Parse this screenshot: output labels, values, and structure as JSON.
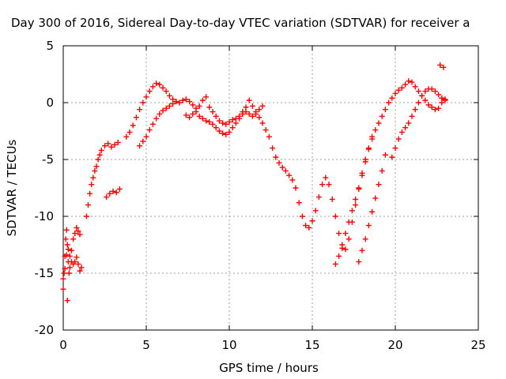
{
  "chart_data": {
    "type": "scatter",
    "title": "Day 300 of 2016, Sidereal Day-to-day VTEC variation (SDTVAR) for receiver a",
    "xlabel": "GPS time / hours",
    "ylabel": "SDTVAR / TECUs",
    "xlim": [
      0,
      25
    ],
    "ylim": [
      -20,
      5
    ],
    "xticks": [
      "0",
      "5",
      "10",
      "15",
      "20",
      "25"
    ],
    "yticks": [
      "-20",
      "-15",
      "-10",
      "-5",
      "0",
      "5"
    ],
    "grid": true,
    "marker": "plus",
    "color": "#ff0000",
    "series": [
      {
        "points": [
          [
            0.0,
            -16.4
          ],
          [
            0.05,
            -15.0
          ],
          [
            0.1,
            -13.5
          ],
          [
            0.15,
            -12.0
          ],
          [
            0.2,
            -11.2
          ],
          [
            0.25,
            -12.5
          ],
          [
            0.3,
            -14.0
          ],
          [
            0.35,
            -15.0
          ],
          [
            0.4,
            -14.5
          ],
          [
            0.5,
            -13.0
          ],
          [
            0.6,
            -12.0
          ],
          [
            0.7,
            -11.5
          ],
          [
            0.8,
            -11.0
          ],
          [
            0.9,
            -11.3
          ],
          [
            1.0,
            -11.6
          ],
          [
            1.4,
            -10.0
          ],
          [
            1.5,
            -9.0
          ],
          [
            1.6,
            -8.0
          ],
          [
            1.7,
            -7.2
          ],
          [
            1.8,
            -6.6
          ],
          [
            1.9,
            -6.0
          ],
          [
            2.0,
            -5.6
          ],
          [
            2.1,
            -5.0
          ],
          [
            2.2,
            -4.6
          ],
          [
            2.3,
            -4.2
          ],
          [
            2.5,
            -3.8
          ],
          [
            2.7,
            -3.6
          ],
          [
            2.9,
            -3.9
          ],
          [
            3.1,
            -3.7
          ],
          [
            3.3,
            -3.5
          ],
          [
            3.8,
            -3.0
          ],
          [
            4.0,
            -2.6
          ],
          [
            4.2,
            -2.0
          ],
          [
            4.4,
            -1.3
          ],
          [
            4.6,
            -0.6
          ],
          [
            4.8,
            0.0
          ],
          [
            5.0,
            0.5
          ],
          [
            5.2,
            1.0
          ],
          [
            5.4,
            1.4
          ],
          [
            5.6,
            1.7
          ],
          [
            5.8,
            1.6
          ],
          [
            6.0,
            1.3
          ],
          [
            6.2,
            1.0
          ],
          [
            6.4,
            0.6
          ],
          [
            6.6,
            0.3
          ],
          [
            6.8,
            0.1
          ],
          [
            7.0,
            0.0
          ],
          [
            7.2,
            0.2
          ],
          [
            7.4,
            0.3
          ],
          [
            7.6,
            0.1
          ],
          [
            7.8,
            -0.2
          ],
          [
            8.0,
            -0.5
          ],
          [
            8.2,
            -0.3
          ],
          [
            8.4,
            0.2
          ],
          [
            8.6,
            0.5
          ],
          [
            8.8,
            -0.4
          ],
          [
            9.0,
            -0.8
          ],
          [
            9.2,
            -1.2
          ],
          [
            9.4,
            -1.6
          ],
          [
            9.6,
            -1.8
          ],
          [
            9.8,
            -1.9
          ],
          [
            10.0,
            -1.7
          ],
          [
            10.2,
            -1.5
          ],
          [
            10.4,
            -1.4
          ],
          [
            10.6,
            -1.2
          ],
          [
            10.8,
            -0.8
          ],
          [
            11.0,
            -0.4
          ],
          [
            11.2,
            0.2
          ],
          [
            11.4,
            -0.3
          ],
          [
            11.6,
            -0.8
          ],
          [
            11.8,
            -1.3
          ],
          [
            12.0,
            -1.8
          ],
          [
            12.2,
            -2.4
          ],
          [
            12.4,
            -3.0
          ],
          [
            12.6,
            -4.0
          ],
          [
            12.8,
            -4.8
          ],
          [
            13.0,
            -5.3
          ],
          [
            13.2,
            -5.7
          ],
          [
            13.4,
            -6.0
          ],
          [
            13.6,
            -6.4
          ],
          [
            13.8,
            -6.8
          ],
          [
            14.0,
            -7.5
          ],
          [
            14.2,
            -8.8
          ],
          [
            14.4,
            -10.0
          ],
          [
            14.6,
            -10.8
          ],
          [
            14.8,
            -11.0
          ],
          [
            15.0,
            -10.4
          ],
          [
            15.2,
            -9.5
          ],
          [
            15.4,
            -8.3
          ],
          [
            15.6,
            -7.2
          ],
          [
            15.8,
            -6.6
          ],
          [
            16.0,
            -7.2
          ],
          [
            16.2,
            -8.5
          ],
          [
            16.4,
            -10.0
          ],
          [
            16.6,
            -11.5
          ],
          [
            16.8,
            -12.8
          ],
          [
            17.0,
            -12.9
          ],
          [
            17.2,
            -12.0
          ],
          [
            17.4,
            -10.5
          ],
          [
            17.6,
            -9.0
          ],
          [
            17.8,
            -7.6
          ],
          [
            18.0,
            -6.2
          ],
          [
            18.2,
            -5.0
          ],
          [
            18.4,
            -4.0
          ],
          [
            18.6,
            -3.2
          ],
          [
            18.8,
            -2.4
          ],
          [
            19.0,
            -1.8
          ],
          [
            19.2,
            -1.2
          ],
          [
            19.4,
            -0.6
          ],
          [
            19.6,
            0.0
          ],
          [
            19.8,
            0.4
          ],
          [
            20.0,
            0.8
          ],
          [
            20.2,
            1.1
          ],
          [
            20.4,
            1.3
          ],
          [
            20.6,
            1.6
          ],
          [
            20.8,
            1.9
          ],
          [
            21.0,
            1.8
          ],
          [
            21.2,
            1.4
          ],
          [
            21.4,
            1.0
          ],
          [
            21.6,
            0.6
          ],
          [
            21.8,
            0.2
          ],
          [
            22.0,
            -0.2
          ],
          [
            22.2,
            -0.4
          ],
          [
            22.4,
            -0.6
          ],
          [
            22.6,
            -0.5
          ],
          [
            22.8,
            0.0
          ],
          [
            23.0,
            0.3
          ]
        ]
      },
      {
        "points": [
          [
            0.0,
            -15.5
          ],
          [
            0.1,
            -14.6
          ],
          [
            0.2,
            -13.4
          ],
          [
            0.3,
            -12.9
          ],
          [
            0.4,
            -13.5
          ],
          [
            0.5,
            -14.0
          ],
          [
            0.6,
            -14.2
          ],
          [
            0.7,
            -14.0
          ],
          [
            0.8,
            -13.6
          ],
          [
            0.9,
            -14.2
          ],
          [
            1.0,
            -14.8
          ],
          [
            1.1,
            -14.5
          ],
          [
            2.6,
            -8.3
          ],
          [
            2.8,
            -8.0
          ],
          [
            3.0,
            -7.8
          ],
          [
            3.2,
            -7.9
          ],
          [
            3.4,
            -7.6
          ],
          [
            4.6,
            -3.8
          ],
          [
            4.8,
            -3.4
          ],
          [
            5.0,
            -3.0
          ],
          [
            5.2,
            -2.4
          ],
          [
            5.4,
            -1.9
          ],
          [
            5.6,
            -1.4
          ],
          [
            5.8,
            -1.0
          ],
          [
            6.0,
            -0.7
          ],
          [
            6.2,
            -0.5
          ],
          [
            6.4,
            -0.3
          ],
          [
            6.6,
            -0.1
          ],
          [
            6.8,
            0.1
          ],
          [
            7.4,
            -1.1
          ],
          [
            7.6,
            -1.3
          ],
          [
            7.8,
            -1.0
          ],
          [
            8.0,
            -0.8
          ],
          [
            8.2,
            -1.2
          ],
          [
            8.4,
            -1.4
          ],
          [
            8.6,
            -1.6
          ],
          [
            8.8,
            -1.7
          ],
          [
            9.0,
            -1.9
          ],
          [
            9.2,
            -2.2
          ],
          [
            9.4,
            -2.5
          ],
          [
            9.6,
            -2.7
          ],
          [
            9.8,
            -2.8
          ],
          [
            10.0,
            -2.6
          ],
          [
            10.2,
            -2.2
          ],
          [
            10.4,
            -1.8
          ],
          [
            10.6,
            -1.4
          ],
          [
            10.8,
            -1.0
          ],
          [
            11.0,
            -0.8
          ],
          [
            11.2,
            -1.0
          ],
          [
            11.4,
            -1.2
          ],
          [
            11.6,
            -1.0
          ],
          [
            11.8,
            -0.6
          ],
          [
            12.0,
            -0.3
          ],
          [
            16.4,
            -14.2
          ],
          [
            16.6,
            -13.5
          ],
          [
            16.8,
            -12.5
          ],
          [
            17.0,
            -11.5
          ],
          [
            17.2,
            -10.5
          ],
          [
            17.4,
            -9.5
          ],
          [
            17.6,
            -8.5
          ],
          [
            17.8,
            -7.5
          ],
          [
            18.0,
            -6.4
          ],
          [
            18.2,
            -5.2
          ],
          [
            18.4,
            -4.1
          ],
          [
            18.6,
            -3.0
          ],
          [
            17.8,
            -14.0
          ],
          [
            18.0,
            -13.0
          ],
          [
            18.2,
            -12.0
          ],
          [
            18.4,
            -10.8
          ],
          [
            18.6,
            -9.6
          ],
          [
            18.8,
            -8.4
          ],
          [
            19.0,
            -7.2
          ],
          [
            19.2,
            -6.0
          ],
          [
            19.4,
            -4.6
          ],
          [
            19.8,
            -4.8
          ],
          [
            20.0,
            -4.0
          ],
          [
            20.2,
            -3.2
          ],
          [
            20.4,
            -2.6
          ],
          [
            20.6,
            -2.2
          ],
          [
            20.8,
            -1.8
          ],
          [
            21.0,
            -1.2
          ],
          [
            21.2,
            -0.6
          ],
          [
            21.4,
            0.0
          ],
          [
            21.6,
            0.6
          ],
          [
            21.8,
            1.0
          ],
          [
            22.0,
            1.2
          ],
          [
            22.2,
            1.2
          ],
          [
            22.4,
            1.0
          ],
          [
            22.6,
            0.7
          ],
          [
            22.8,
            0.4
          ],
          [
            23.0,
            0.2
          ],
          [
            22.7,
            3.3
          ],
          [
            22.9,
            3.1
          ],
          [
            0.25,
            -17.4
          ]
        ]
      }
    ]
  }
}
